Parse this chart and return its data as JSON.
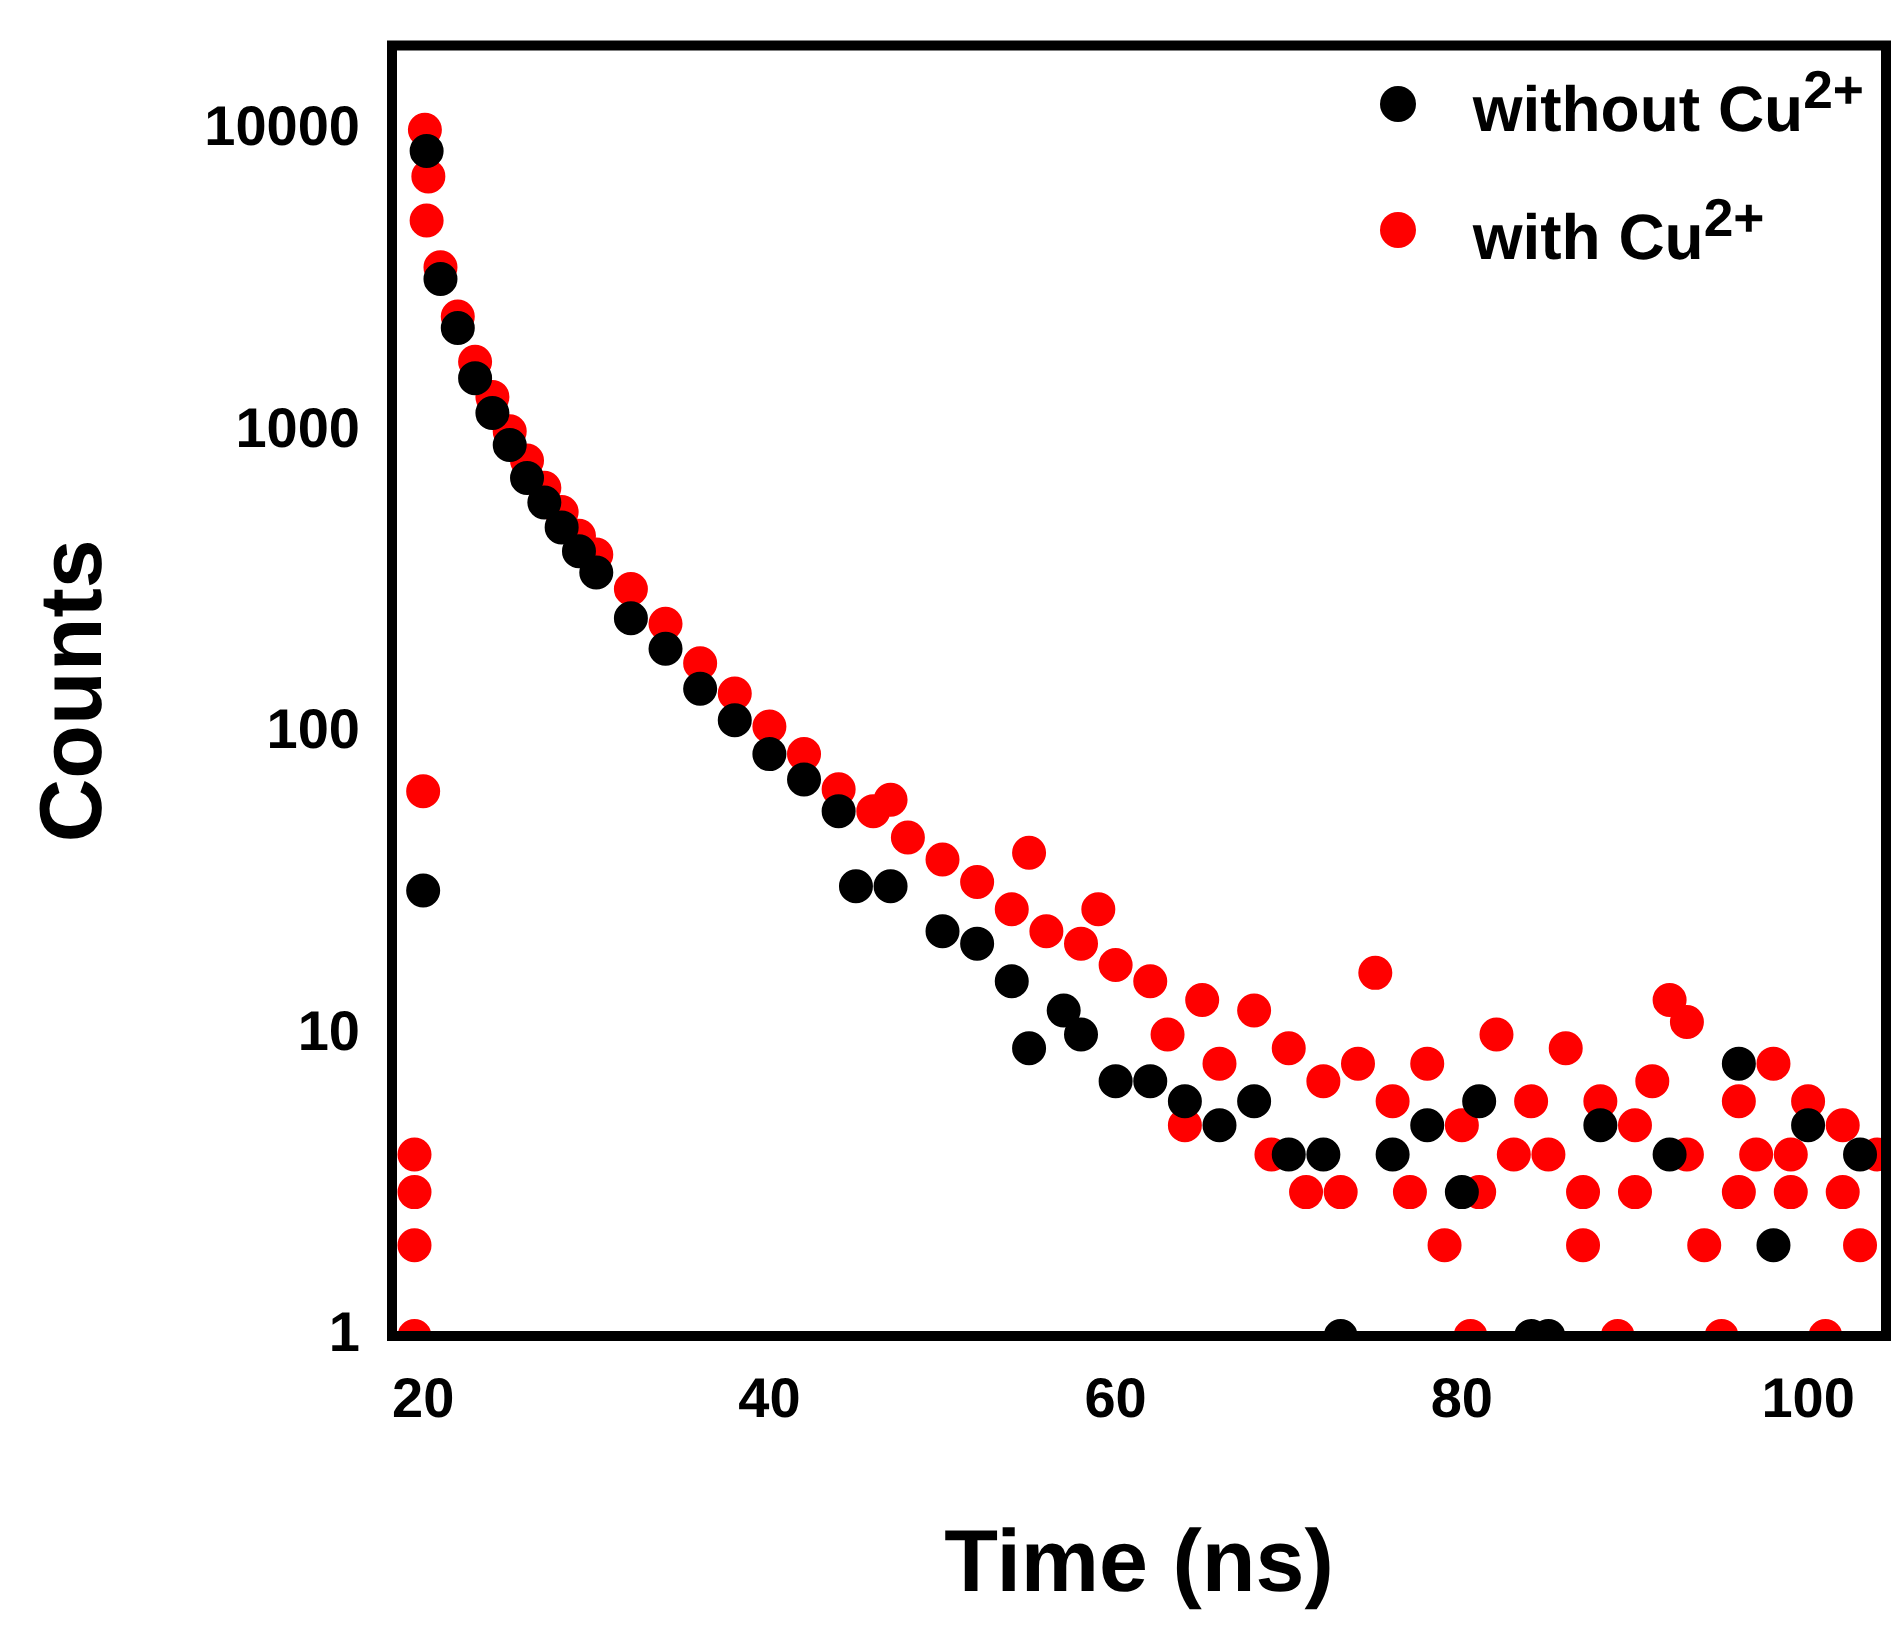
{
  "chart_data": {
    "type": "scatter",
    "xlabel": "Time (ns)",
    "ylabel": "Counts",
    "xlim": [
      18.2,
      104.5
    ],
    "ylim": [
      1,
      19000
    ],
    "xticks": [
      20,
      40,
      60,
      80,
      100
    ],
    "yticks": [
      1,
      10,
      100,
      1000,
      10000
    ],
    "log": "y",
    "grid": false,
    "legend": "top right",
    "marker": "circle",
    "series": [
      {
        "name": "without Cu$^{2+}$",
        "color": "#000000",
        "x": [
          20,
          20.2,
          21,
          22,
          23,
          24,
          25,
          26,
          27,
          28,
          29,
          30,
          32,
          34,
          36,
          38,
          40,
          42,
          44,
          45,
          47,
          50,
          52,
          54,
          55,
          57,
          58,
          60,
          62,
          64,
          66,
          68,
          70,
          72,
          73,
          76,
          78,
          80,
          81,
          84,
          85,
          88,
          92,
          96,
          98,
          100,
          103
        ],
        "values": [
          30,
          8500,
          3200,
          2200,
          1500,
          1150,
          900,
          700,
          580,
          480,
          400,
          340,
          240,
          190,
          140,
          110,
          85,
          70,
          55,
          31,
          31,
          22,
          20,
          15,
          9,
          12,
          10,
          7,
          7,
          6,
          5,
          6,
          4,
          4,
          1,
          4,
          5,
          3,
          6,
          1,
          1,
          5,
          4,
          8,
          2,
          5,
          4
        ]
      },
      {
        "name": "with Cu$^{2+}$",
        "color": "#ff0000",
        "x": [
          19.5,
          19.5,
          19.5,
          19.5,
          20,
          20.1,
          20.3,
          20.2,
          21,
          22,
          23,
          24,
          25,
          26,
          27,
          28,
          29,
          30,
          32,
          34,
          36,
          38,
          40,
          42,
          44,
          46,
          47,
          48,
          50,
          52,
          54,
          55,
          56,
          58,
          59,
          60,
          62,
          63,
          64,
          65,
          66,
          68,
          70,
          69,
          71,
          72,
          73,
          74,
          75,
          76,
          77,
          78,
          79,
          80,
          80.5,
          81,
          82,
          83,
          84,
          85,
          86,
          87,
          87,
          88,
          89,
          90,
          90,
          91,
          92,
          93,
          93,
          94,
          95,
          96,
          96,
          97,
          98,
          99,
          99,
          100,
          101,
          102,
          102,
          103,
          104
        ],
        "values": [
          1,
          2,
          3,
          4,
          64,
          10000,
          7000,
          5000,
          3500,
          2400,
          1700,
          1300,
          1000,
          800,
          650,
          540,
          450,
          390,
          300,
          230,
          170,
          135,
          105,
          85,
          65,
          55,
          60,
          45,
          38,
          32,
          26,
          40,
          22,
          20,
          26,
          17,
          15,
          10,
          5,
          13,
          8,
          12,
          9,
          4,
          3,
          7,
          3,
          8,
          16,
          6,
          3,
          8,
          2,
          5,
          1,
          3,
          10,
          4,
          6,
          4,
          9,
          2,
          3,
          6,
          1,
          5,
          3,
          7,
          13,
          11,
          4,
          2,
          1,
          6,
          3,
          4,
          8,
          3,
          4,
          6,
          1,
          5,
          3,
          2,
          4
        ]
      }
    ]
  }
}
